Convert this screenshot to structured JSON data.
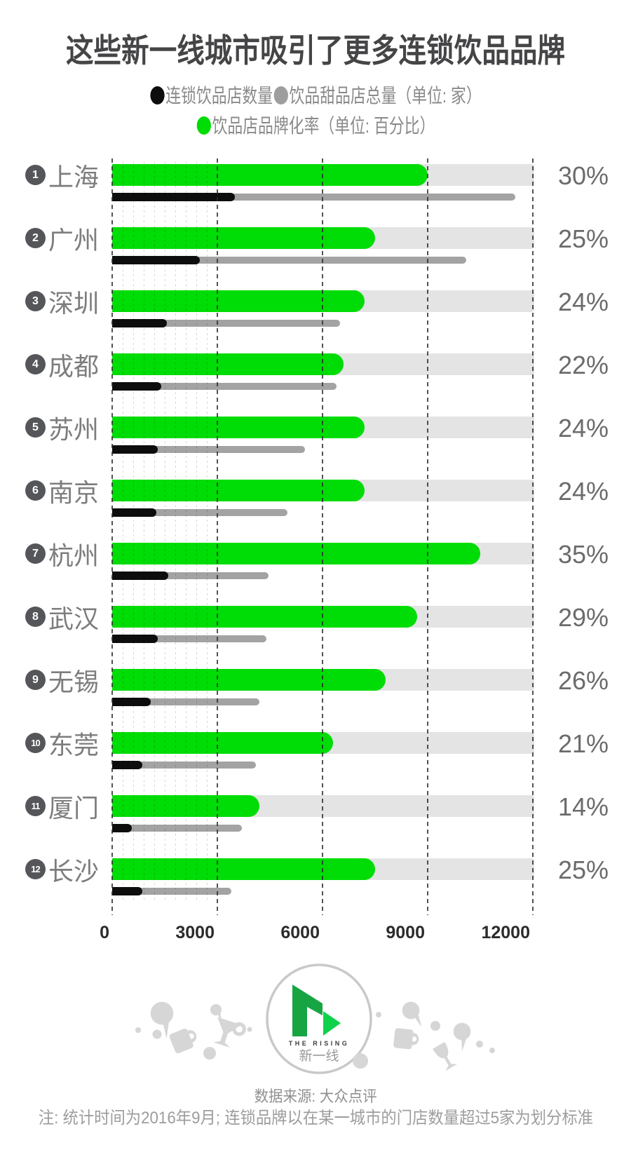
{
  "title": "这些新一线城市吸引了更多连锁饮品品牌",
  "legend": {
    "series1_label": "连锁饮品店数量",
    "series2_label": "饮品甜品店总量（单位: 家）",
    "series3_label": "饮品店品牌化率（单位: 百分比）"
  },
  "colors": {
    "chain_black": "#0d0d0d",
    "total_gray": "#a3a3a3",
    "rate_green": "#00dc05",
    "track_gray": "#e4e4e4",
    "badge_gray": "#55565a"
  },
  "chart_data": {
    "type": "bar",
    "title": "这些新一线城市吸引了更多连锁饮品品牌",
    "categories": [
      "上海",
      "广州",
      "深圳",
      "成都",
      "苏州",
      "南京",
      "杭州",
      "武汉",
      "无锡",
      "东莞",
      "厦门",
      "长沙"
    ],
    "ranks": [
      1,
      2,
      3,
      4,
      5,
      6,
      7,
      8,
      9,
      10,
      11,
      12
    ],
    "series": [
      {
        "name": "连锁饮品店数量",
        "unit": "家",
        "color": "#0d0d0d",
        "values": [
          3500,
          2500,
          1550,
          1400,
          1300,
          1250,
          1600,
          1300,
          1100,
          850,
          550,
          850
        ]
      },
      {
        "name": "饮品甜品店总量",
        "unit": "家",
        "color": "#a3a3a3",
        "values": [
          11500,
          10100,
          6500,
          6400,
          5500,
          5000,
          4450,
          4400,
          4200,
          4100,
          3700,
          3400
        ]
      },
      {
        "name": "饮品店品牌化率",
        "unit": "%",
        "color": "#00dc05",
        "values": [
          30,
          25,
          24,
          22,
          24,
          24,
          35,
          29,
          26,
          21,
          14,
          25
        ]
      }
    ],
    "pct_labels": [
      "30%",
      "25%",
      "24%",
      "22%",
      "24%",
      "24%",
      "35%",
      "29%",
      "26%",
      "21%",
      "14%",
      "25%"
    ],
    "x_axis": {
      "ticks": [
        0,
        3000,
        6000,
        9000,
        12000
      ],
      "max": 12000,
      "minor_step": 300,
      "minor_max": 2700
    },
    "pct_axis_max": 40,
    "grid": "dashed-vertical",
    "legend_position": "top"
  },
  "logo": {
    "line1": "THE RISING",
    "line2": "新一线"
  },
  "footer": {
    "source": "数据来源: 大众点评",
    "note": "注: 统计时间为2016年9月; 连锁品牌以在某一城市的门店数量超过5家为划分标准"
  }
}
